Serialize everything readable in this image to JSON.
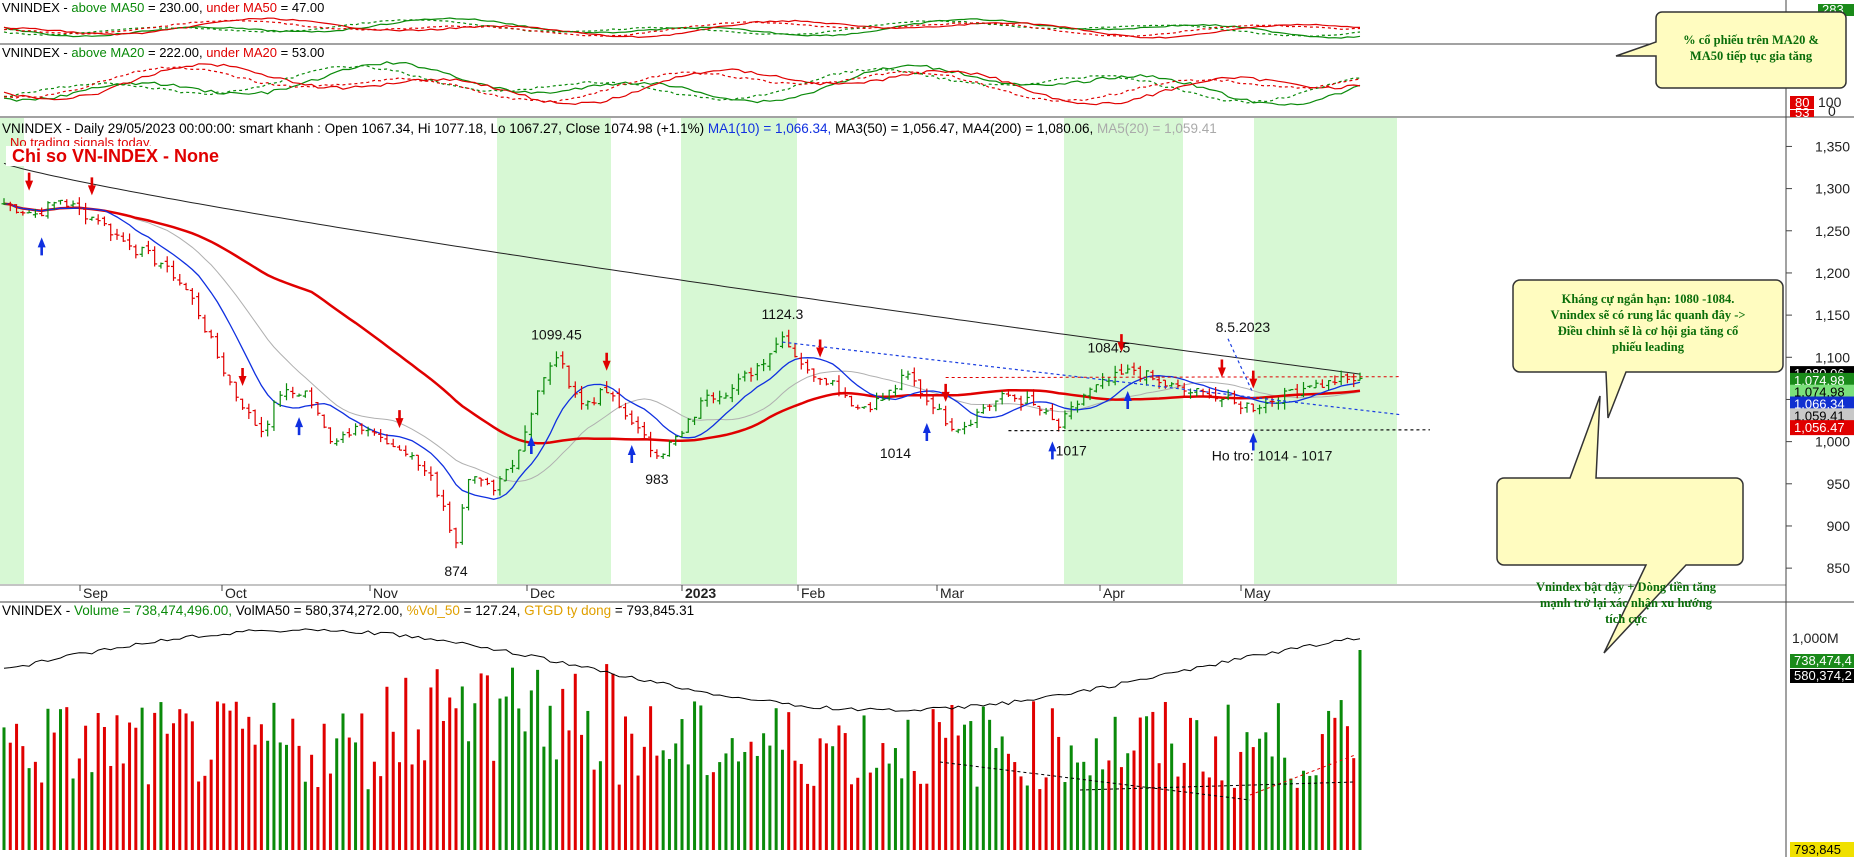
{
  "chart_data": [
    {
      "type": "line",
      "panel": "breadth_ma50",
      "header": {
        "symbol": "VNINDEX",
        "above_label": "above MA50",
        "above_value": "230.00",
        "under_label": "under MA50",
        "under_value": "47.00"
      },
      "right_labels": [
        "283",
        "0"
      ],
      "colors": {
        "above": "#0a8a0a",
        "under": "#e00000"
      }
    },
    {
      "type": "line",
      "panel": "breadth_ma20",
      "header": {
        "symbol": "VNINDEX",
        "above_label": "above MA20",
        "above_value": "222.00",
        "under_label": "under MA20",
        "under_value": "53.00"
      },
      "y_ticks": [
        "100",
        "0"
      ],
      "right_tags": [
        {
          "text": "80",
          "color": "#e00000"
        },
        {
          "text": "53",
          "color": "#e00000"
        }
      ],
      "colors": {
        "above": "#0a8a0a",
        "under": "#e00000"
      }
    },
    {
      "type": "line",
      "panel": "price",
      "header": {
        "prefix": "VNINDEX - Daily 29/05/2023 00:00:00: smart khanh : Open 1067.34, Hi 1077.18, Lo 1067.27, Close 1074.98 (+1.1%)",
        "ma1": "MA1(10) = 1,066.34,",
        "ma3": "MA3(50) = 1,056.47,",
        "ma4": "MA4(200) = 1,080.06,",
        "ma5": "MA5(20) = 1,059.41"
      },
      "title": "Chi so VN-INDEX - None",
      "subtitle": "No trading signals today.",
      "x_ticks": [
        "Sep",
        "Oct",
        "Nov",
        "Dec",
        "2023",
        "Feb",
        "Mar",
        "Apr",
        "May"
      ],
      "y_ticks": [
        "1,350",
        "1,300",
        "1,250",
        "1,200",
        "1,150",
        "1,100",
        "1,050",
        "1,000",
        "950",
        "900",
        "850"
      ],
      "ylim": [
        830,
        1360
      ],
      "close_anchors": [
        {
          "i": 0,
          "v": 1282
        },
        {
          "i": 5,
          "v": 1270
        },
        {
          "i": 9,
          "v": 1286
        },
        {
          "i": 15,
          "v": 1262
        },
        {
          "i": 20,
          "v": 1232
        },
        {
          "i": 26,
          "v": 1208
        },
        {
          "i": 30,
          "v": 1170
        },
        {
          "i": 34,
          "v": 1100
        },
        {
          "i": 38,
          "v": 1040
        },
        {
          "i": 41,
          "v": 1012
        },
        {
          "i": 44,
          "v": 1055
        },
        {
          "i": 48,
          "v": 1060
        },
        {
          "i": 52,
          "v": 1000
        },
        {
          "i": 56,
          "v": 1018
        },
        {
          "i": 60,
          "v": 1005
        },
        {
          "i": 64,
          "v": 985
        },
        {
          "i": 68,
          "v": 960
        },
        {
          "i": 72,
          "v": 880
        },
        {
          "i": 74,
          "v": 955
        },
        {
          "i": 78,
          "v": 942
        },
        {
          "i": 82,
          "v": 990
        },
        {
          "i": 85,
          "v": 1060
        },
        {
          "i": 88,
          "v": 1099.45
        },
        {
          "i": 92,
          "v": 1045
        },
        {
          "i": 96,
          "v": 1058
        },
        {
          "i": 100,
          "v": 1022
        },
        {
          "i": 104,
          "v": 983
        },
        {
          "i": 108,
          "v": 1010
        },
        {
          "i": 112,
          "v": 1055
        },
        {
          "i": 116,
          "v": 1063
        },
        {
          "i": 120,
          "v": 1090
        },
        {
          "i": 124,
          "v": 1124.3
        },
        {
          "i": 128,
          "v": 1085
        },
        {
          "i": 132,
          "v": 1072
        },
        {
          "i": 136,
          "v": 1040
        },
        {
          "i": 140,
          "v": 1050
        },
        {
          "i": 144,
          "v": 1080
        },
        {
          "i": 148,
          "v": 1040
        },
        {
          "i": 152,
          "v": 1014
        },
        {
          "i": 156,
          "v": 1040
        },
        {
          "i": 160,
          "v": 1055
        },
        {
          "i": 164,
          "v": 1044
        },
        {
          "i": 168,
          "v": 1017
        },
        {
          "i": 172,
          "v": 1055
        },
        {
          "i": 176,
          "v": 1072
        },
        {
          "i": 180,
          "v": 1084.5
        },
        {
          "i": 184,
          "v": 1070
        },
        {
          "i": 188,
          "v": 1060
        },
        {
          "i": 192,
          "v": 1055
        },
        {
          "i": 196,
          "v": 1046
        },
        {
          "i": 200,
          "v": 1040
        },
        {
          "i": 204,
          "v": 1060
        },
        {
          "i": 208,
          "v": 1066
        },
        {
          "i": 212,
          "v": 1070
        },
        {
          "i": 216,
          "v": 1074.98
        }
      ],
      "bars_count": 217,
      "annotations": [
        {
          "text": "874",
          "i": 72,
          "v": 874,
          "pos": "below"
        },
        {
          "text": "1099.45",
          "i": 88,
          "v": 1099.45,
          "pos": "above"
        },
        {
          "text": "983",
          "i": 104,
          "v": 983,
          "pos": "below"
        },
        {
          "text": "1124.3",
          "i": 124,
          "v": 1124.3,
          "pos": "above"
        },
        {
          "text": "1014",
          "i": 142,
          "v": 1014,
          "pos": "below"
        },
        {
          "text": "1017",
          "i": 170,
          "v": 1017,
          "pos": "below"
        },
        {
          "text": "1084.5",
          "i": 176,
          "v": 1084.5,
          "pos": "above"
        },
        {
          "text": "8.5.2023",
          "i": 193,
          "v": 1130,
          "pos": "label",
          "color": "#1a3ee0"
        },
        {
          "text": "Ho tro: 1014 - 1017",
          "i": 202,
          "v": 1011,
          "pos": "below"
        }
      ],
      "right_tags": [
        {
          "text": "1,080.06",
          "bg": "#000000",
          "fg": "#ffffff",
          "v": 1080.06
        },
        {
          "text": "1,074.98",
          "bg": "#1a8a1a",
          "fg": "#ffffff",
          "v": 1072
        },
        {
          "text": "1,074.98",
          "bg": "#7be07b",
          "fg": "#000000",
          "v": 1058
        },
        {
          "text": "1,066.34",
          "bg": "#1030d0",
          "fg": "#ffffff",
          "v": 1044
        },
        {
          "text": "1,059.41",
          "bg": "#c8c8c8",
          "fg": "#000000",
          "v": 1030
        },
        {
          "text": "1,056.47",
          "bg": "#e00000",
          "fg": "#ffffff",
          "v": 1016
        }
      ],
      "colors": {
        "up": "#0a8a0a",
        "down": "#e00000",
        "ma10": "#1030e0",
        "ma50": "#e00000",
        "ma200": "#222222",
        "ma20": "#b0b0b0",
        "band": "#d7f8d4"
      }
    },
    {
      "type": "bar",
      "panel": "volume",
      "header": {
        "symbol": "VNINDEX",
        "volume": "Volume = 738,474,496.00,",
        "volma": "VolMA50 = 580,374,272.00,",
        "vol50": "%Vol_50",
        "vol50_value": "= 127.24,",
        "gtgd": "GTGD ty dong",
        "gtgd_value": "= 793,845.31"
      },
      "y_ticks": [
        "1,000M"
      ],
      "right_tags": [
        {
          "text": "738,474,4",
          "bg": "#1a8a1a",
          "fg": "#ffffff"
        },
        {
          "text": "580,374,2",
          "bg": "#000000",
          "fg": "#ffffff"
        },
        {
          "text": "793,845",
          "bg": "#f0e000",
          "fg": "#000000"
        }
      ]
    }
  ],
  "callouts": [
    {
      "lines": [
        "% cổ phiếu trên MA20 &",
        "MA50 tiếp tục gia tăng"
      ]
    },
    {
      "lines": [
        "Kháng cự ngắn hạn: 1080 -1084.",
        "Vnindex sẽ có rung lắc quanh đây ->",
        "Điều chỉnh sẽ là cơ hội gia tăng cổ",
        "phiếu leading"
      ]
    },
    {
      "lines": [
        "Vnindex bật dậy + Dòng tiền tăng",
        "mạnh trở lại xác nhận xu hướng",
        "tích cực"
      ]
    }
  ]
}
